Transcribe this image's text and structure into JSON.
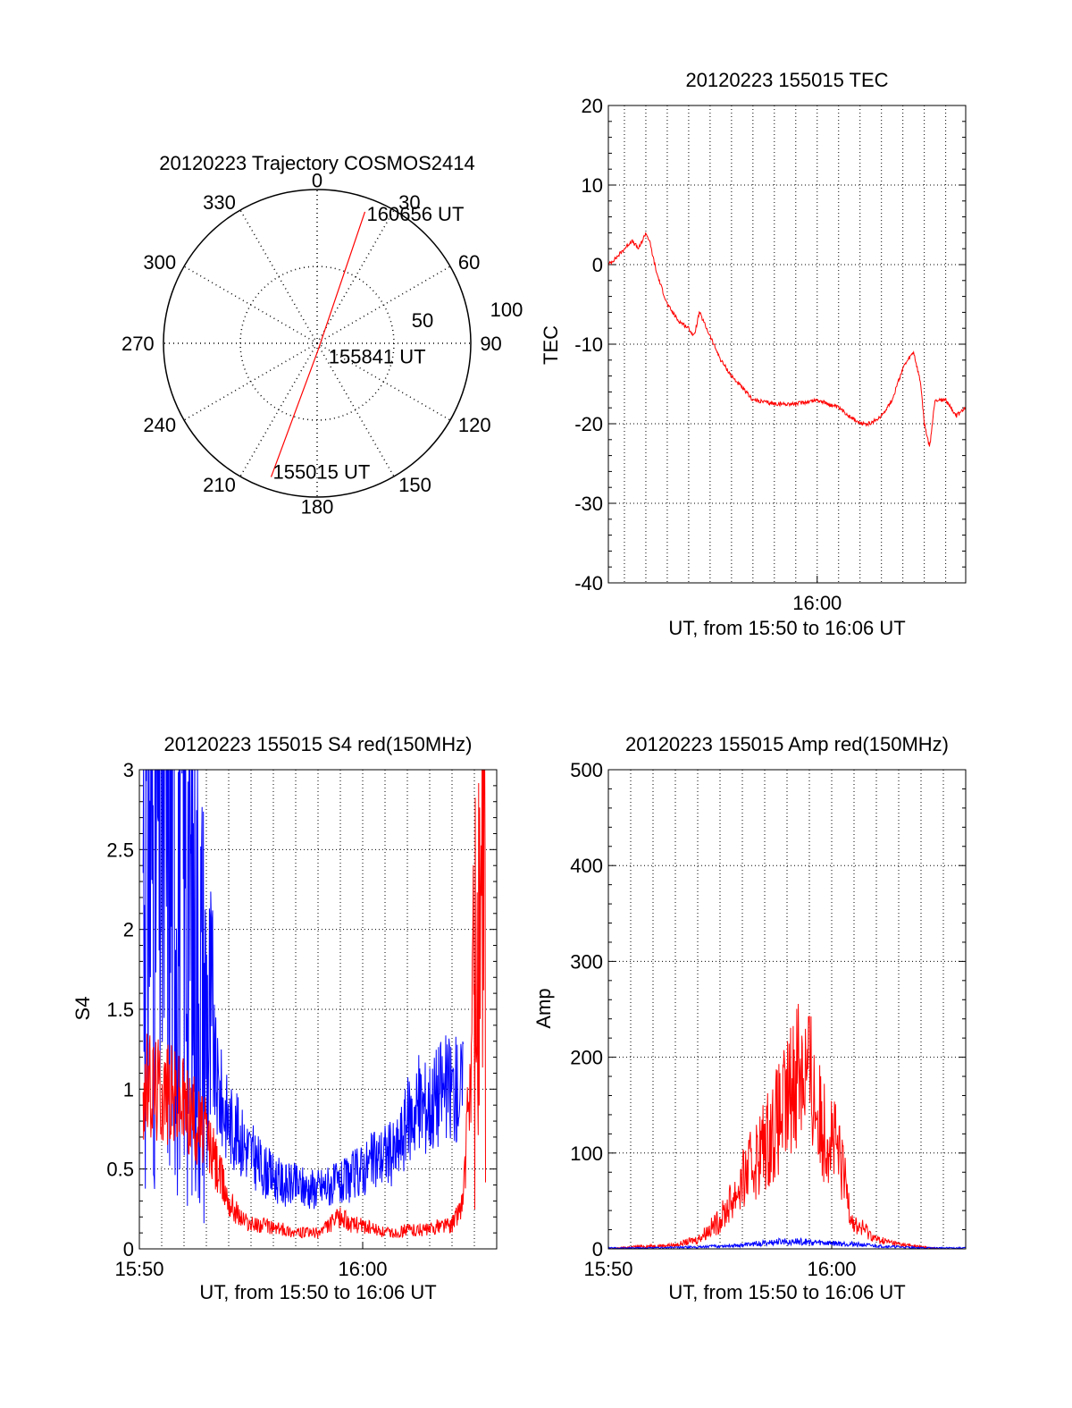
{
  "colors": {
    "red": "#ff0000",
    "blue": "#0000ff",
    "axis": "#000000",
    "grid": "#000000"
  },
  "chart_data": [
    {
      "id": "trajectory",
      "type": "polar",
      "title": "20120223 Trajectory COSMOS2414",
      "angle_labels": [
        "0",
        "30",
        "60",
        "90",
        "120",
        "150",
        "180",
        "210",
        "240",
        "270",
        "300",
        "330"
      ],
      "angle_values": [
        0,
        30,
        60,
        90,
        120,
        150,
        180,
        210,
        240,
        270,
        300,
        330
      ],
      "radial_labels": [
        "50",
        "100"
      ],
      "radial_values": [
        50,
        100
      ],
      "rmax": 100,
      "track": {
        "color": "red",
        "points": [
          {
            "time": "155015",
            "az": 199,
            "el_r": 92
          },
          {
            "time": "155841",
            "az": 175,
            "el_r": 5
          },
          {
            "time": "160656",
            "az": 20,
            "el_r": 91
          }
        ]
      },
      "annotations": [
        "160656 UT",
        "155841 UT",
        "155015 UT"
      ]
    },
    {
      "id": "tec",
      "type": "line",
      "title": "20120223 155015 TEC",
      "xlabel": "UT, from 15:50 to 16:06 UT",
      "ylabel": "TEC",
      "xlim": [
        "15:50:15",
        "16:06:56"
      ],
      "ylim": [
        -40,
        20
      ],
      "yticks": [
        "-40",
        "-30",
        "-20",
        "-10",
        "0",
        "10",
        "20"
      ],
      "xticks": [
        "16:00"
      ],
      "grid": true,
      "series": [
        {
          "color": "red",
          "x": [
            "15:50:15",
            "15:50:40",
            "15:51:00",
            "15:51:20",
            "15:51:40",
            "15:52:00",
            "15:52:10",
            "15:52:30",
            "15:53:00",
            "15:53:30",
            "15:54:00",
            "15:54:15",
            "15:54:30",
            "15:55:00",
            "15:55:30",
            "15:56:00",
            "15:57:00",
            "15:58:00",
            "15:59:00",
            "16:00:00",
            "16:01:00",
            "16:02:00",
            "16:02:30",
            "16:03:00",
            "16:03:30",
            "16:04:00",
            "16:04:30",
            "16:04:50",
            "16:05:00",
            "16:05:15",
            "16:05:30",
            "16:06:00",
            "16:06:30",
            "16:06:56"
          ],
          "y": [
            0,
            1,
            2,
            3,
            2,
            4,
            3,
            -1,
            -5,
            -7,
            -8,
            -9,
            -6,
            -9,
            -12,
            -14,
            -17,
            -17.5,
            -17.5,
            -17,
            -18,
            -20,
            -20,
            -19,
            -17,
            -13,
            -11,
            -15,
            -20,
            -23,
            -17,
            -17,
            -19,
            -18
          ]
        }
      ]
    },
    {
      "id": "s4",
      "type": "line",
      "title": "20120223 155015 S4 red(150MHz)",
      "xlabel": "UT, from 15:50 to 16:06 UT",
      "ylabel": "S4",
      "xlim": [
        "15:50:00",
        "16:06:00"
      ],
      "ylim": [
        0,
        3
      ],
      "yticks": [
        "0",
        "0.5",
        "1",
        "1.5",
        "2",
        "2.5",
        "3"
      ],
      "xticks": [
        "15:50",
        "16:00"
      ],
      "grid": true,
      "series": [
        {
          "color": "blue",
          "x": [
            "15:50:10",
            "15:51:00",
            "15:52:00",
            "15:53:00",
            "15:53:30",
            "15:54:00",
            "15:54:30",
            "15:55:00",
            "15:55:30",
            "15:56:00",
            "15:56:30",
            "15:57:00",
            "15:57:30",
            "15:58:00",
            "15:58:30",
            "15:59:00",
            "15:59:30",
            "16:00:00",
            "16:00:30",
            "16:01:00",
            "16:01:30",
            "16:02:00",
            "16:02:30",
            "16:03:00",
            "16:03:30",
            "16:04:00",
            "16:04:30"
          ],
          "y": [
            2.6,
            2.6,
            2.5,
            1.5,
            1.0,
            0.8,
            0.7,
            0.6,
            0.5,
            0.45,
            0.4,
            0.4,
            0.38,
            0.38,
            0.4,
            0.4,
            0.45,
            0.5,
            0.55,
            0.6,
            0.6,
            0.8,
            0.9,
            0.9,
            1.0,
            1.0,
            1.0
          ]
        },
        {
          "color": "red",
          "x": [
            "15:50:10",
            "15:51:00",
            "15:52:00",
            "15:53:00",
            "15:53:30",
            "15:54:00",
            "15:54:30",
            "15:55:00",
            "15:55:30",
            "15:56:00",
            "15:56:30",
            "15:57:00",
            "15:57:30",
            "15:58:00",
            "15:58:30",
            "15:59:00",
            "15:59:30",
            "16:00:00",
            "16:00:30",
            "16:01:00",
            "16:01:30",
            "16:02:00",
            "16:02:30",
            "16:03:00",
            "16:03:30",
            "16:04:00",
            "16:04:30",
            "16:05:00",
            "16:05:30"
          ],
          "y": [
            1.0,
            1.0,
            0.9,
            0.7,
            0.5,
            0.3,
            0.2,
            0.15,
            0.15,
            0.13,
            0.12,
            0.1,
            0.1,
            0.1,
            0.15,
            0.2,
            0.15,
            0.15,
            0.12,
            0.1,
            0.1,
            0.12,
            0.12,
            0.12,
            0.15,
            0.15,
            0.3,
            1.5,
            2.0
          ]
        }
      ]
    },
    {
      "id": "amp",
      "type": "line",
      "title": "20120223 155015 Amp red(150MHz)",
      "xlabel": "UT, from 15:50 to 16:06 UT",
      "ylabel": "Amp",
      "xlim": [
        "15:50:00",
        "16:06:00"
      ],
      "ylim": [
        0,
        500
      ],
      "yticks": [
        "0",
        "100",
        "200",
        "300",
        "400",
        "500"
      ],
      "xticks": [
        "15:50",
        "16:00"
      ],
      "grid": true,
      "series": [
        {
          "color": "red",
          "x": [
            "15:50:00",
            "15:51:00",
            "15:52:00",
            "15:53:00",
            "15:54:00",
            "15:55:00",
            "15:56:00",
            "15:57:00",
            "15:58:00",
            "15:58:30",
            "15:59:00",
            "15:59:30",
            "16:00:00",
            "16:00:30",
            "16:01:00",
            "16:01:30",
            "16:02:00",
            "16:03:00",
            "16:04:00",
            "16:05:00",
            "16:06:00"
          ],
          "y": [
            0,
            2,
            3,
            4,
            10,
            30,
            70,
            110,
            150,
            200,
            180,
            130,
            120,
            80,
            25,
            20,
            10,
            5,
            2,
            0,
            0
          ]
        },
        {
          "color": "blue",
          "x": [
            "15:50:00",
            "15:52:00",
            "15:54:00",
            "15:56:00",
            "15:57:00",
            "15:58:00",
            "15:59:00",
            "16:00:00",
            "16:01:00",
            "16:02:00",
            "16:04:00",
            "16:06:00"
          ],
          "y": [
            1,
            1,
            2,
            4,
            6,
            8,
            7,
            6,
            5,
            3,
            1,
            1
          ]
        }
      ]
    }
  ]
}
